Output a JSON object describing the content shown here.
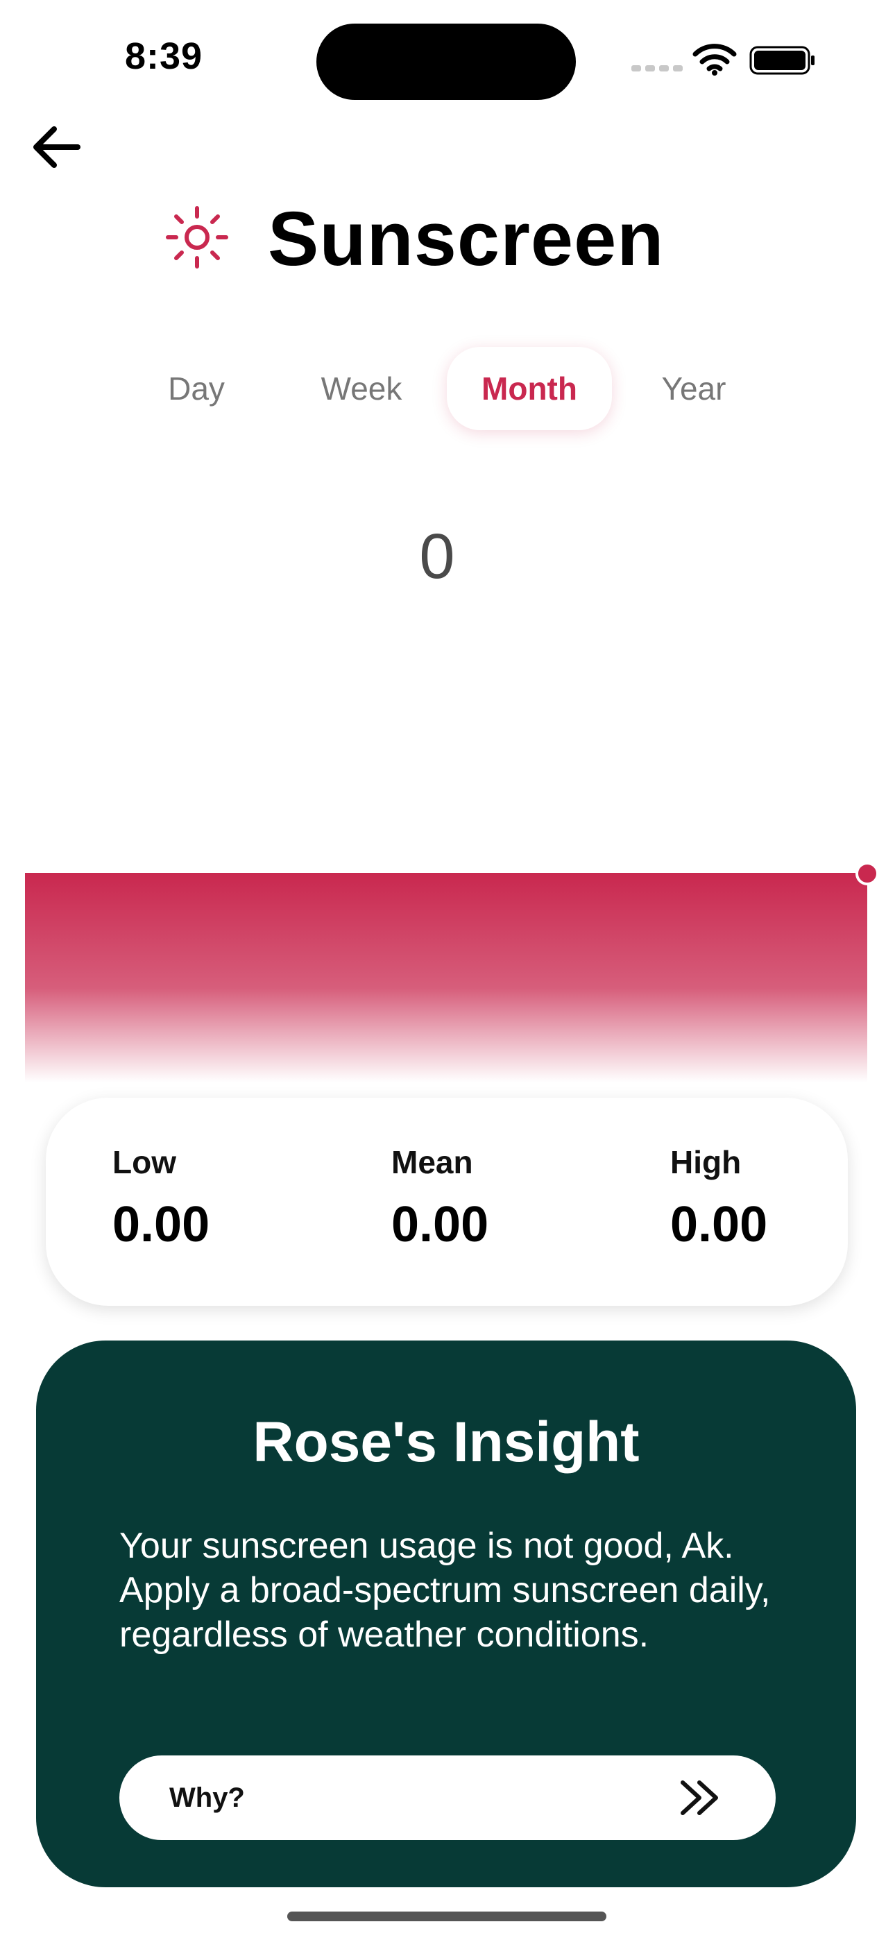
{
  "status_bar": {
    "time": "8:39"
  },
  "header": {
    "title": "Sunscreen",
    "icon": "sun-icon",
    "back_icon": "arrow-left-icon"
  },
  "tabs": [
    {
      "label": "Day",
      "active": false
    },
    {
      "label": "Week",
      "active": false
    },
    {
      "label": "Month",
      "active": true
    },
    {
      "label": "Year",
      "active": false
    }
  ],
  "current_value": "0",
  "chart_data": {
    "type": "area",
    "series": [
      {
        "values": [
          0,
          0
        ]
      }
    ],
    "color": "#c9284f"
  },
  "stats": {
    "low_label": "Low",
    "low_value": "0.00",
    "mean_label": "Mean",
    "mean_value": "0.00",
    "high_label": "High",
    "high_value": "0.00"
  },
  "insight": {
    "title": "Rose's Insight",
    "text": "Your sunscreen usage is not good, Ak. Apply a broad-spectrum sunscreen daily, regardless of weather conditions.",
    "button_label": "Why?",
    "button_icon": "double-chevron-right-icon"
  },
  "colors": {
    "accent": "#c9284f",
    "insight_bg": "#073a36"
  }
}
